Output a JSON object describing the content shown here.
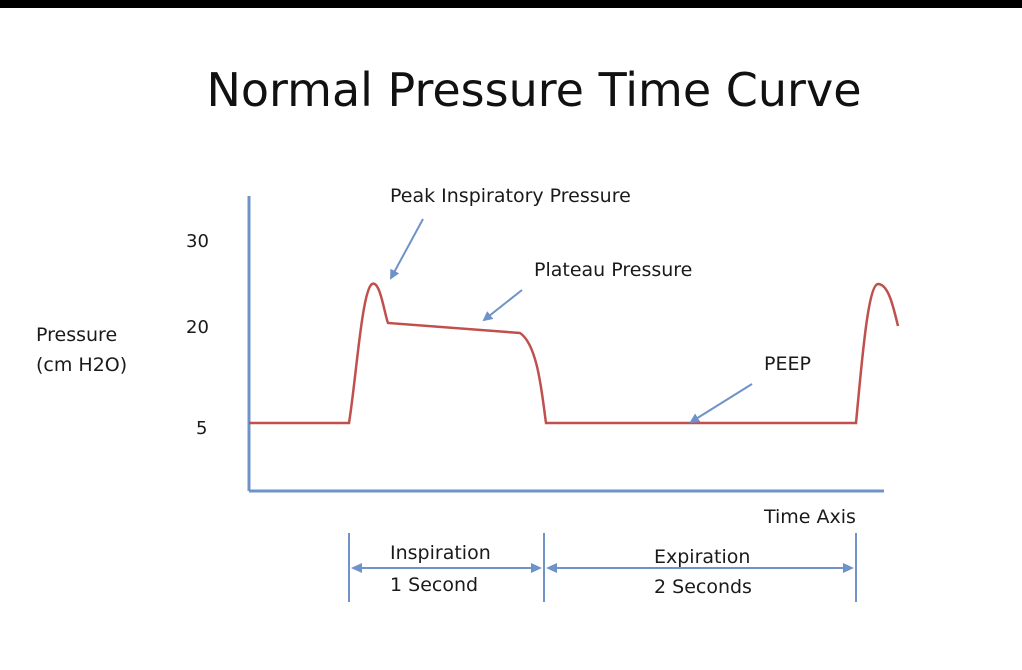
{
  "title": "Normal Pressure Time Curve",
  "y_axis": {
    "label_line1": "Pressure",
    "label_line2": "(cm H2O)",
    "ticks": [
      "30",
      "20",
      "5"
    ]
  },
  "x_axis": {
    "label": "Time Axis"
  },
  "annotations": {
    "peak": "Peak Inspiratory Pressure",
    "plateau": "Plateau Pressure",
    "peep": "PEEP"
  },
  "phases": {
    "inspiration_line1": "Inspiration",
    "inspiration_line2": "1 Second",
    "expiration_line1": "Expiration",
    "expiration_line2": "2 Seconds"
  },
  "colors": {
    "curve": "#c0504d",
    "axis": "#6f93c8",
    "arrow": "#6f93c8"
  }
}
